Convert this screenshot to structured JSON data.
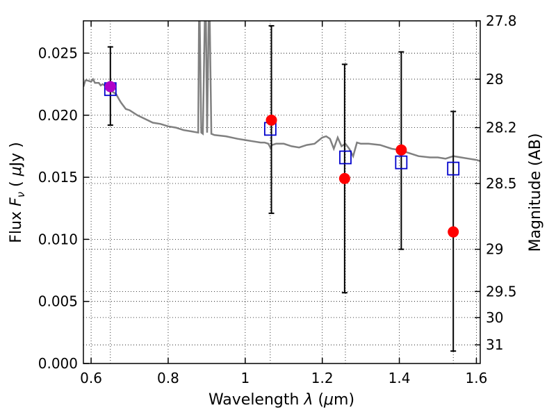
{
  "chart_data": {
    "type": "scatter",
    "x_axis": {
      "label_prefix": "Wavelength  ",
      "label_symbol": "λ",
      "label_paren_open": " (",
      "label_unit_mu": "μ",
      "label_unit_rest": "m)",
      "range": [
        0.58,
        1.61
      ],
      "ticks": [
        {
          "value": 0.6,
          "label": "0.6"
        },
        {
          "value": 0.8,
          "label": "0.8"
        },
        {
          "value": 1.0,
          "label": "1"
        },
        {
          "value": 1.2,
          "label": "1.2"
        },
        {
          "value": 1.4,
          "label": "1.4"
        },
        {
          "value": 1.6,
          "label": "1.6"
        }
      ],
      "minor_gridlines": [
        0.6,
        0.65,
        0.8,
        1.0,
        1.065,
        1.2,
        1.26,
        1.4,
        1.54,
        1.6
      ]
    },
    "y_axis": {
      "label_prefix": "Flux  ",
      "label_symbol": "F",
      "label_subscript": "ν",
      "label_paren_open": "  ( ",
      "label_unit_mu": "μ",
      "label_unit_rest": "Jy )",
      "range": [
        0.0,
        0.0276
      ],
      "ticks": [
        {
          "value": 0.0,
          "label": "0.000"
        },
        {
          "value": 0.005,
          "label": "0.005"
        },
        {
          "value": 0.01,
          "label": "0.010"
        },
        {
          "value": 0.015,
          "label": "0.015"
        },
        {
          "value": 0.02,
          "label": "0.020"
        },
        {
          "value": 0.025,
          "label": "0.025"
        }
      ]
    },
    "right_axis": {
      "label": "Magnitude (AB)",
      "ticks": [
        {
          "flux": 0.0276,
          "label": "27.8"
        },
        {
          "flux": 0.0229,
          "label": "28"
        },
        {
          "flux": 0.019,
          "label": "28.2"
        },
        {
          "flux": 0.0145,
          "label": "28.5"
        },
        {
          "flux": 0.0092,
          "label": "29"
        },
        {
          "flux": 0.0058,
          "label": "29.5"
        },
        {
          "flux": 0.0037,
          "label": "30"
        },
        {
          "flux": 0.0015,
          "label": "31"
        }
      ]
    },
    "series": [
      {
        "name": "observed-photometry",
        "marker": "circle",
        "color": "#ff0000",
        "x": [
          0.65,
          1.068,
          1.258,
          1.405,
          1.54
        ],
        "y": [
          0.0223,
          0.0196,
          0.0149,
          0.0172,
          0.0106
        ],
        "yerr_low": [
          0.0192,
          0.0121,
          0.0057,
          0.0092,
          0.001
        ],
        "yerr_high": [
          0.0255,
          0.0272,
          0.0241,
          0.0251,
          0.0203
        ]
      },
      {
        "name": "model-photometry",
        "marker": "square",
        "color": "#0000cc",
        "x": [
          0.65,
          1.065,
          1.26,
          1.405,
          1.54
        ],
        "y": [
          0.0221,
          0.0189,
          0.0166,
          0.0162,
          0.0157
        ]
      },
      {
        "name": "model-sed",
        "type": "line",
        "color": "#808080",
        "x": [
          0.58,
          0.585,
          0.59,
          0.6,
          0.605,
          0.61,
          0.62,
          0.625,
          0.63,
          0.64,
          0.65,
          0.655,
          0.66,
          0.665,
          0.672,
          0.678,
          0.69,
          0.7,
          0.72,
          0.74,
          0.76,
          0.78,
          0.8,
          0.82,
          0.84,
          0.86,
          0.878,
          0.88,
          0.882,
          0.886,
          0.89,
          0.895,
          0.898,
          0.901,
          0.905,
          0.908,
          0.912,
          0.92,
          0.95,
          0.98,
          1.0,
          1.02,
          1.04,
          1.05,
          1.06,
          1.065,
          1.07,
          1.08,
          1.1,
          1.12,
          1.14,
          1.16,
          1.18,
          1.2,
          1.21,
          1.22,
          1.23,
          1.24,
          1.25,
          1.26,
          1.27,
          1.28,
          1.29,
          1.3,
          1.32,
          1.35,
          1.38,
          1.4,
          1.42,
          1.45,
          1.48,
          1.5,
          1.52,
          1.54,
          1.56,
          1.58,
          1.6,
          1.61
        ],
        "y": [
          0.0223,
          0.0228,
          0.0228,
          0.0227,
          0.0229,
          0.0226,
          0.0226,
          0.0224,
          0.0225,
          0.0223,
          0.0222,
          0.0219,
          0.0218,
          0.0217,
          0.0213,
          0.021,
          0.0205,
          0.0204,
          0.02,
          0.0197,
          0.0194,
          0.0193,
          0.0191,
          0.019,
          0.0188,
          0.0187,
          0.0186,
          0.0276,
          0.0276,
          0.0186,
          0.0185,
          0.0276,
          0.0276,
          0.0186,
          0.0276,
          0.0276,
          0.0185,
          0.0184,
          0.0183,
          0.0181,
          0.018,
          0.0179,
          0.0178,
          0.0178,
          0.0177,
          0.0174,
          0.0176,
          0.0177,
          0.0177,
          0.0175,
          0.0174,
          0.0176,
          0.0177,
          0.0182,
          0.0183,
          0.0181,
          0.0173,
          0.0182,
          0.0175,
          0.0177,
          0.0173,
          0.0167,
          0.0178,
          0.0177,
          0.0177,
          0.0176,
          0.0173,
          0.0172,
          0.017,
          0.0167,
          0.0166,
          0.0166,
          0.0165,
          0.0167,
          0.0166,
          0.0165,
          0.0164,
          0.0163
        ]
      }
    ]
  }
}
